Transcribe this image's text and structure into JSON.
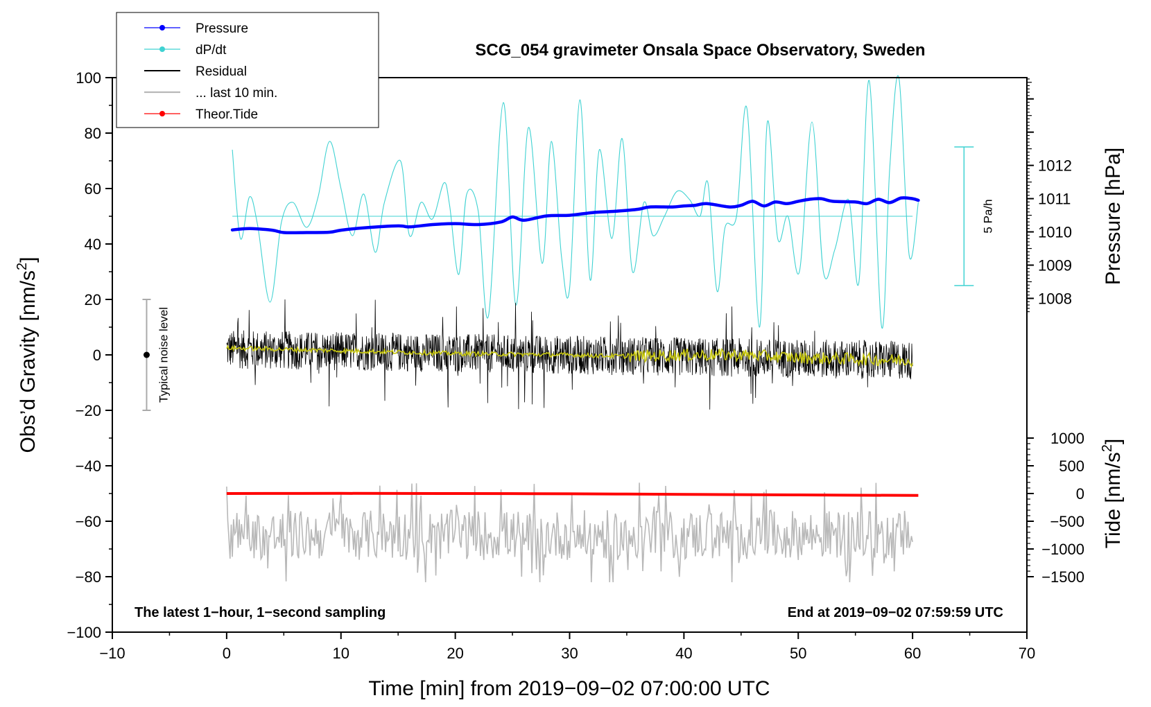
{
  "chart_data": {
    "type": "line",
    "title": "SCG_054 gravimeter Onsala Space Observatory, Sweden",
    "xlabel": "Time [min] from 2019−09−02 07:00:00 UTC",
    "ylabel_left": "Obs’d Gravity [nm/s",
    "ylabel_left_sup": "2",
    "ylabel_left_close": "]",
    "ylabel_right_pressure": "Pressure [hPa]",
    "ylabel_right_tide": "Tide [nm/s",
    "ylabel_right_tide_sup": "2",
    "ylabel_right_tide_close": "]",
    "xlim": [
      -10,
      70
    ],
    "ylim": [
      -100,
      100
    ],
    "xticks": [
      -10,
      0,
      10,
      20,
      30,
      40,
      50,
      60,
      70
    ],
    "xtick_labels": [
      "−10",
      "0",
      "10",
      "20",
      "30",
      "40",
      "50",
      "60",
      "70"
    ],
    "yticks": [
      -100,
      -80,
      -60,
      -40,
      -20,
      0,
      20,
      40,
      60,
      80,
      100
    ],
    "ytick_labels": [
      "−100",
      "−80",
      "−60",
      "−40",
      "−20",
      "0",
      "20",
      "40",
      "60",
      "80",
      "100"
    ],
    "pressure_axis": {
      "label_values": [
        1008,
        1009,
        1010,
        1011,
        1012
      ],
      "labels": [
        "1008",
        "1009",
        "1010",
        "1011",
        "1012"
      ],
      "value_at_gravity_0": 1006.3,
      "hPa_per_gravity_unit": 0.0834
    },
    "tide_axis": {
      "label_values": [
        1000,
        500,
        0,
        -500,
        -1000,
        -1500
      ],
      "labels": [
        "1000",
        "500",
        "0",
        "−500",
        "−1000",
        "−1500"
      ],
      "gravity_at_tide_0": -50,
      "gravity_per_tide_unit": 0.02
    },
    "series": [
      {
        "name": "Pressure",
        "color": "#0000ff",
        "axis": "pressure_hPa",
        "x": [
          0.5,
          2,
          4,
          5,
          7,
          9,
          10,
          12,
          15,
          16,
          18,
          20,
          22,
          24,
          25,
          26,
          28,
          30,
          32,
          34,
          36,
          37,
          39,
          40,
          41,
          42,
          44,
          45,
          46,
          47,
          48,
          49,
          50,
          51,
          52,
          53,
          55,
          56,
          57,
          58,
          59,
          60,
          60.5
        ],
        "y": [
          1010.06,
          1010.1,
          1010.05,
          1009.98,
          1009.98,
          1009.99,
          1010.05,
          1010.12,
          1010.18,
          1010.15,
          1010.22,
          1010.25,
          1010.22,
          1010.3,
          1010.45,
          1010.35,
          1010.48,
          1010.5,
          1010.58,
          1010.62,
          1010.68,
          1010.75,
          1010.75,
          1010.78,
          1010.8,
          1010.85,
          1010.75,
          1010.8,
          1010.92,
          1010.78,
          1010.9,
          1010.85,
          1010.92,
          1010.98,
          1011.0,
          1010.92,
          1010.9,
          1010.85,
          1010.98,
          1010.88,
          1011.02,
          1011.0,
          1010.95
        ]
      },
      {
        "name": "dP/dt",
        "color": "#3fd2d2",
        "axis": "gravity_left_scaled",
        "baseline": 50,
        "x": [
          0.5,
          1.2,
          2,
          2.7,
          3.8,
          4.8,
          5.8,
          7,
          8,
          9,
          10,
          11,
          12,
          13,
          13.8,
          15.2,
          16,
          17,
          18,
          19,
          19.5,
          20.3,
          21,
          22,
          22.9,
          24.2,
          25.3,
          26.4,
          27.6,
          28.4,
          29.3,
          30,
          30.9,
          31.8,
          32.6,
          33.7,
          34.6,
          35.5,
          36.5,
          37.3,
          38.3,
          39.4,
          40.5,
          41.4,
          42.1,
          42.9,
          43.6,
          44.6,
          45.5,
          46.6,
          47.3,
          48.2,
          49.1,
          50.1,
          51.2,
          52.2,
          53.2,
          54.4,
          55.3,
          56.2,
          57.3,
          58.0,
          58.8,
          59.7,
          60.5
        ],
        "y": [
          74,
          42,
          57,
          47,
          19,
          48,
          55,
          46,
          57,
          77,
          60,
          43,
          58,
          37,
          55,
          70,
          43,
          55,
          49,
          62,
          54,
          29,
          58,
          52,
          14,
          91,
          18,
          82,
          33,
          77,
          35,
          24,
          92,
          27,
          74,
          42,
          78,
          30,
          55,
          43,
          50,
          59,
          56,
          50,
          62,
          23,
          46,
          50,
          89,
          10,
          84,
          42,
          50,
          30,
          84,
          30,
          38,
          56,
          26,
          99,
          10,
          67,
          100,
          36,
          55
        ]
      },
      {
        "name": "Residual",
        "color": "#000000",
        "axis": "gravity_left",
        "x_start": 0,
        "x_end": 60,
        "center_start": 2,
        "center_end": -2,
        "band_half_width": 7,
        "spike_max": 20,
        "spike_min": -22
      },
      {
        "name": "Residual smoothed",
        "color": "#c8c810",
        "axis": "gravity_left",
        "x": [
          0,
          10,
          20,
          30,
          35,
          40,
          45,
          50,
          55,
          60
        ],
        "y": [
          2.5,
          1.5,
          0.5,
          0,
          -0.5,
          0,
          0,
          -1,
          -1.5,
          -2
        ]
      },
      {
        "name": "... last 10 min.",
        "color": "#b8b8b8",
        "axis": "gravity_left",
        "x_start": 0,
        "x_end": 60,
        "center": -65,
        "high": -44,
        "low": -82
      },
      {
        "name": "Theor.Tide",
        "color": "#ff0000",
        "axis": "tide_nm_s2",
        "x": [
          0,
          10,
          20,
          30,
          40,
          50,
          60.5
        ],
        "y": [
          0,
          2,
          0,
          -5,
          -15,
          -25,
          -35
        ]
      }
    ],
    "noise_level": {
      "label": "Typical noise level",
      "x": -7,
      "center": 0,
      "low": -20,
      "high": 20
    },
    "dpdt_scale_bar": {
      "label": "5 Pa/h",
      "x": 64.5,
      "low": 25,
      "high": 75
    },
    "annotations": {
      "bottom_left": "The latest 1−hour, 1−second sampling",
      "bottom_right": "End at 2019−09−02 07:59:59 UTC"
    },
    "legend": {
      "placement": "top-left",
      "entries": [
        {
          "label": "Pressure",
          "color": "#0000ff",
          "marker": true
        },
        {
          "label": "dP/dt",
          "color": "#3fd2d2",
          "marker": true
        },
        {
          "label": "Residual",
          "color": "#000000",
          "marker": false
        },
        {
          "label": "... last 10 min.",
          "color": "#b8b8b8",
          "marker": false
        },
        {
          "label": "Theor.Tide",
          "color": "#ff0000",
          "marker": true
        }
      ]
    }
  }
}
